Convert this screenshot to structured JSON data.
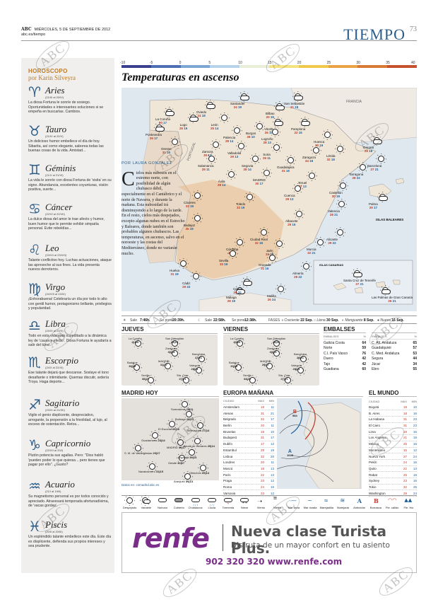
{
  "header": {
    "brand": "ABC",
    "date": "MIÉRCOLES, 5 DE SEPTIEMBRE DE 2012",
    "site": "abc.es/tiempo",
    "section": "TIEMPO",
    "page": "73"
  },
  "watermark": "ABC",
  "scale": {
    "labels": [
      "-10",
      "-5",
      "0",
      "5",
      "10",
      "15",
      "20",
      "25",
      "30",
      "35",
      "40"
    ],
    "colors": [
      "#3a3f8e",
      "#4f6fb5",
      "#7ea6d3",
      "#b7d3e8",
      "#e8eed7",
      "#f4e27e",
      "#f0c84a",
      "#e9a344",
      "#d87a34",
      "#c5522d"
    ]
  },
  "title": "Temperaturas en ascenso",
  "article": {
    "byline": "POR LAURA GONZÁLEZ",
    "dropcap": "C",
    "text": "ielos más nubosos en el extremo norte, con posibilidad de algún chubasco débil, especialmente en el Cantábrico y el norte de Navarra, y durante la mañana. Esta nubosidad irá disminuyendo a lo largo de la tarde. En el resto, cielos más despejados, excepto algunas nubes en el Estrecho y Baleares, donde también son probables algunos chubascos. Las temperaturas, en ascenso, salvo en el noroeste y las costas del Mediterráneo, donde no variarán mucho."
  },
  "map": {
    "france": "FRANCIA",
    "portugal": "PORTUGAL",
    "baleares": "ISLAS BALEARES",
    "canarias": "ISLAS CANARIAS",
    "cities": [
      {
        "n": "La Coruña",
        "t": [
          "20",
          "17"
        ]
      },
      {
        "n": "Oviedo",
        "t": [
          "24",
          "18"
        ]
      },
      {
        "n": "Santander",
        "t": [
          "24",
          "19"
        ]
      },
      {
        "n": "Bilbao",
        "t": [
          "20",
          "15"
        ]
      },
      {
        "n": "San Sebastián",
        "t": [
          "21",
          "15"
        ]
      },
      {
        "n": "Lugo",
        "t": [
          "26",
          "15"
        ]
      },
      {
        "n": "Pontevedra",
        "t": [
          "26",
          "17"
        ]
      },
      {
        "n": "León",
        "t": [
          "25",
          "14"
        ]
      },
      {
        "n": "Burgos",
        "t": [
          "28",
          "10"
        ]
      },
      {
        "n": "Vitoria",
        "t": [
          "26",
          "17"
        ]
      },
      {
        "n": "Pamplona",
        "t": [
          "22",
          "15"
        ]
      },
      {
        "n": "Orense",
        "t": [
          "31",
          "15"
        ]
      },
      {
        "n": "Palencia",
        "t": [
          "28",
          "14"
        ]
      },
      {
        "n": "Logroño",
        "t": [
          "28",
          "13"
        ]
      },
      {
        "n": "Huesca",
        "t": [
          "30",
          "19"
        ]
      },
      {
        "n": "Gerona",
        "t": [
          "28",
          "18"
        ]
      },
      {
        "n": "Zamora",
        "t": [
          "30",
          "13"
        ]
      },
      {
        "n": "Valladolid",
        "t": [
          "29",
          "13"
        ]
      },
      {
        "n": "Soria",
        "t": [
          "26",
          "11"
        ]
      },
      {
        "n": "Zaragoza",
        "t": [
          "34",
          "18"
        ]
      },
      {
        "n": "Lérida",
        "t": [
          "32",
          "18"
        ]
      },
      {
        "n": "Barcelona",
        "t": [
          "27",
          "21"
        ]
      },
      {
        "n": "Salamanca",
        "t": [
          "28",
          "11"
        ]
      },
      {
        "n": "Segovia",
        "t": [
          "28",
          "14"
        ]
      },
      {
        "n": "Guadalajara",
        "t": [
          "31",
          "16"
        ]
      },
      {
        "n": "Tarragona",
        "t": [
          "28",
          "22"
        ]
      },
      {
        "n": "Ávila",
        "t": [
          "28",
          "14"
        ]
      },
      {
        "n": "MADRID",
        "t": [
          "30",
          "17"
        ]
      },
      {
        "n": "Teruel",
        "t": [
          "27",
          "13"
        ]
      },
      {
        "n": "Cuenca",
        "t": [
          "29",
          "13"
        ]
      },
      {
        "n": "Castellón",
        "t": [
          "30",
          "19"
        ]
      },
      {
        "n": "Cáceres",
        "t": [
          "33",
          "19"
        ]
      },
      {
        "n": "Toledo",
        "t": [
          "33",
          "19"
        ]
      },
      {
        "n": "Valencia",
        "t": [
          "28",
          "21"
        ]
      },
      {
        "n": "Palma",
        "t": [
          "29",
          "17"
        ]
      },
      {
        "n": "Badajoz",
        "t": [
          "35",
          "19"
        ]
      },
      {
        "n": "Ciudad Real",
        "t": [
          "32",
          "18"
        ]
      },
      {
        "n": "Albacete",
        "t": [
          "29",
          "15"
        ]
      },
      {
        "n": "Alicante",
        "t": [
          "29",
          "22"
        ]
      },
      {
        "n": "Córdoba",
        "t": [
          "35",
          "20"
        ]
      },
      {
        "n": "Jaén",
        "t": [
          "31",
          "20"
        ]
      },
      {
        "n": "Murcia",
        "t": [
          "32",
          "21"
        ]
      },
      {
        "n": "Huelva",
        "t": [
          "31",
          "19"
        ]
      },
      {
        "n": "Sevilla",
        "t": [
          "33",
          "19"
        ]
      },
      {
        "n": "Granada",
        "t": [
          "31",
          "16"
        ]
      },
      {
        "n": "Almería",
        "t": [
          "29",
          "22"
        ]
      },
      {
        "n": "Cádiz",
        "t": [
          "29",
          "22"
        ]
      },
      {
        "n": "Málaga",
        "t": [
          "28",
          "19"
        ]
      },
      {
        "n": "Ceuta",
        "t": [
          "29",
          "20"
        ]
      },
      {
        "n": "Melilla",
        "t": [
          "26",
          "24"
        ]
      },
      {
        "n": "Santa Cruz de Tenerife",
        "t": [
          "27",
          "21"
        ]
      },
      {
        "n": "Las Palmas de Gran Canaria",
        "t": [
          "26",
          "21"
        ]
      }
    ]
  },
  "strip": {
    "sale_lbl": "Sale",
    "sale_sun": "7:46h.",
    "pone_lbl": "Se pone",
    "pone_sun": "20:39h.",
    "sale_moon": "22:58h.",
    "pone_moon": "12:38h.",
    "fases": "FASES",
    "f1": "Creciente",
    "f1d": "22 Sep.",
    "f2": "Llena",
    "f2d": "30 Sep.",
    "f3": "Menguante",
    "f3d": "8 Sep.",
    "f4": "Nueva",
    "f4d": "16 Sep."
  },
  "jueves": {
    "title": "JUEVES",
    "cities": [
      {
        "n": "La Coruña",
        "t": "21|16"
      },
      {
        "n": "San Sebastián",
        "t": "23|15"
      },
      {
        "n": "Zaragoza",
        "t": "33|18"
      },
      {
        "n": "Barcelona",
        "t": "27|21"
      },
      {
        "n": "Badajoz",
        "t": "36|19"
      },
      {
        "n": "MADRID",
        "t": "31|17"
      },
      {
        "n": "Valencia",
        "t": "28|21"
      },
      {
        "n": "Sevilla",
        "t": "36|21"
      },
      {
        "n": "Sta. Cruz",
        "t": "27|21"
      }
    ]
  },
  "viernes": {
    "title": "VIERNES",
    "cities": [
      {
        "n": "La Coruña",
        "t": "20|16"
      },
      {
        "n": "San Sebastián",
        "t": "24|16"
      },
      {
        "n": "Zaragoza",
        "t": "33|19"
      },
      {
        "n": "Barcelona",
        "t": "26|21"
      },
      {
        "n": "Badajoz",
        "t": "33|19"
      },
      {
        "n": "MADRID",
        "t": "29|17"
      },
      {
        "n": "Valencia",
        "t": "28|21"
      },
      {
        "n": "Sevilla",
        "t": "34|20"
      },
      {
        "n": "Sta. Cruz",
        "t": "27|21"
      }
    ]
  },
  "embalses": {
    "title": "EMBALSES",
    "hdr": [
      "EMBALSES",
      "%"
    ],
    "rows": [
      [
        "Galicia Costa",
        "64"
      ],
      [
        "Norte",
        "59"
      ],
      [
        "C.I. País Vasco",
        "76"
      ],
      [
        "Duero",
        "42"
      ],
      [
        "Tajo",
        "42"
      ],
      [
        "Guadiana",
        "60"
      ]
    ]
  },
  "embalses2": {
    "hdr": [
      "EMBALSES",
      "%"
    ],
    "rows": [
      [
        "C. Atl. Andaluza",
        "65"
      ],
      [
        "Guadalquivir",
        "57"
      ],
      [
        "C. Med. Andaluza",
        "53"
      ],
      [
        "Segura",
        "44"
      ],
      [
        "Júcar",
        "34"
      ],
      [
        "Ebro",
        "55"
      ]
    ]
  },
  "madrid": {
    "title": "MADRID HOY",
    "source": "Datos en: csmadrid.abc.es",
    "places": [
      {
        "n": "Somosierra",
        "t": "23|11"
      },
      {
        "n": "Buitrago",
        "t": "26|13"
      },
      {
        "n": "Torrelaguna",
        "t": "27|14"
      },
      {
        "n": "El Escorial",
        "t": "26|16"
      },
      {
        "n": "S. M. de Valdeiglesias",
        "t": "29|17"
      },
      {
        "n": "Guadarrama",
        "t": "23|14"
      },
      {
        "n": "MADRID",
        "t": "30|17"
      },
      {
        "n": "Alcalá de Henares",
        "t": "29|14"
      },
      {
        "n": "Navalcarnero",
        "t": "31|15"
      },
      {
        "n": "Getafe",
        "t": "30|17"
      },
      {
        "n": "Arganda",
        "t": "30|14"
      },
      {
        "n": "Chinchón",
        "t": "29|14"
      },
      {
        "n": "Aranjuez",
        "t": "31|14"
      }
    ]
  },
  "europa": {
    "title": "EUROPA MAÑANA",
    "hdr": [
      "CIUDAD",
      "MAX",
      "MIN"
    ],
    "rows": [
      [
        "Amsterdam",
        "19",
        "11"
      ],
      [
        "Atenas",
        "31",
        "21"
      ],
      [
        "Belgrado",
        "32",
        "17"
      ],
      [
        "Berlín",
        "20",
        "11"
      ],
      [
        "Bruselas",
        "19",
        "10"
      ],
      [
        "Budapest",
        "31",
        "17"
      ],
      [
        "Dublín",
        "17",
        "12"
      ],
      [
        "Estambul",
        "29",
        "19"
      ],
      [
        "Lisboa",
        "32",
        "20"
      ],
      [
        "Londres",
        "20",
        "11"
      ],
      [
        "Moscú",
        "18",
        "13"
      ],
      [
        "París",
        "22",
        "13"
      ],
      [
        "Praga",
        "23",
        "12"
      ],
      [
        "Roma",
        "24",
        "16"
      ],
      [
        "Varsovia",
        "23",
        "12"
      ]
    ],
    "h1": "A",
    "h1v": "1028",
    "l1": "B",
    "l1v": "984"
  },
  "mundo": {
    "title": "EL MUNDO",
    "hdr": [
      "CIUDAD",
      "MAX",
      "MIN"
    ],
    "rows": [
      [
        "Bogotá",
        "18",
        "10"
      ],
      [
        "B. Aires",
        "18",
        "16"
      ],
      [
        "La Habana",
        "31",
        "23"
      ],
      [
        "El Cairo",
        "31",
        "23"
      ],
      [
        "Lima",
        "19",
        "16"
      ],
      [
        "Los Ángeles",
        "21",
        "19"
      ],
      [
        "México",
        "25",
        "16"
      ],
      [
        "Montevideo",
        "15",
        "12"
      ],
      [
        "Nueva York",
        "27",
        "24"
      ],
      [
        "Pekín",
        "24",
        "16"
      ],
      [
        "Quito",
        "22",
        "13"
      ],
      [
        "Rabat",
        "26",
        "18"
      ],
      [
        "Sydney",
        "23",
        "16"
      ],
      [
        "Tokio",
        "32",
        "25"
      ],
      [
        "Washington",
        "29",
        "24"
      ]
    ]
  },
  "legend": [
    {
      "l": "Despejado",
      "i": "sun"
    },
    {
      "l": "Variable",
      "i": "sun-cloud"
    },
    {
      "l": "Nuboso",
      "i": "cloud"
    },
    {
      "l": "Cubierto",
      "i": "clouds"
    },
    {
      "l": "Chubascos",
      "i": "shower"
    },
    {
      "l": "Lluvia",
      "i": "rain"
    },
    {
      "l": "Tormenta",
      "i": "storm"
    },
    {
      "l": "Nieve",
      "i": "snow"
    },
    {
      "l": "Viento",
      "i": "wind"
    },
    {
      "l": "Niebla",
      "i": "fog"
    },
    {
      "l": "Mar llana",
      "i": "sea-calm"
    },
    {
      "l": "Mar rizada",
      "i": "sea-choppy"
    },
    {
      "l": "Marejadilla",
      "i": "sea-light"
    },
    {
      "l": "Marejada",
      "i": "sea-moderate"
    },
    {
      "l": "Anticiclón",
      "i": "high"
    },
    {
      "l": "Borrasca",
      "i": "low"
    },
    {
      "l": "Fte. cálido",
      "i": "warm-front"
    },
    {
      "l": "Fte. frío",
      "i": "cold-front"
    }
  ],
  "ad": {
    "brand": "renfe",
    "headline": "Nueva clase Turista Plus.",
    "sub": "Disfruta de un mayor confort en tu asiento",
    "contact": "902 320 320 www.renfe.com"
  },
  "horoscopo": {
    "title": "HOROSCOPO",
    "by": "por Karin Silveyra",
    "signs": [
      {
        "s": "♈",
        "n": "Aries",
        "d": "(21/III al 20/IV)",
        "t": "La diosa Fortuna le sonríe de sosiego. Oportunidades e interesantes soluciones si se empeña en buscarlas. Cambios."
      },
      {
        "s": "♉",
        "n": "Tauro",
        "d": "(21/IV al 20/V)",
        "t": "Un delicioso humor embellece el día de hoy. Sibarita, así como elegante, saborea todas las buenas cosas de la vida. Amistad..."
      },
      {
        "s": "♊",
        "n": "Géminis",
        "d": "(21/V al 21/VI)",
        "t": "La vida le sonríe con diosa Fortuna de 'visita' en su signo. Abundancia, excelentes coyunturas, visión positiva, suerte..."
      },
      {
        "s": "♋",
        "n": "Cáncer",
        "d": "(22/VI al 22/VII)",
        "t": "La dulce diosa del amor le trae afecto y humor, buen humor que le permite exhibir simpatía personal. Evite rebeldías..."
      },
      {
        "s": "♌",
        "n": "Leo",
        "d": "(23/VII al 23/VIII)",
        "t": "Talante conflictivo hoy. Luchas actuaciones, ataque las aproveche al sus fines. La vida presenta nuevos derroteros."
      },
      {
        "s": "♍",
        "n": "Virgo",
        "d": "(24/VIII al 23/IX)",
        "t": "¡Enhorabuena! Celebraría un día por todo lo alto con gentil humor, protagonismo brillante, privilegios y popularidad."
      },
      {
        "s": "♎",
        "n": "Libra",
        "d": "(24/IX al 23/X)",
        "t": "Todo en esta vida está supeditado a la dinámica ley de 'causa y efecto'. Diosa Fortuna le ayudaría a salir del túnel."
      },
      {
        "s": "♏",
        "n": "Escorpio",
        "d": "(24/X al 22/XI)",
        "t": "Ese talante dejará que descanse. Soslaye el tono desafiante o intimidante. Quemas discutir, ardería Troya. Haga deporte..."
      },
      {
        "s": "♐",
        "n": "Sagitario",
        "d": "(23/XI al 21/XII)",
        "t": "Vigile el genio displicente, despreciativo, arrogante, la propensión a la frivolidad, al lujo, al exceso de ostentación. Retos..."
      },
      {
        "s": "♑",
        "n": "Capricornio",
        "d": "(22/XII al 20/I)",
        "t": "Plutón potencia sus agallas. Pero: \"Dios habló 'pueden poder lo que quieras... pero tienes que pagar por ello\". ¿Gusto?"
      },
      {
        "s": "♒",
        "n": "Acuario",
        "d": "(21/I al 19/II)",
        "t": "Su magnetismo personal es por todos conocido y apreciado. Atravesará temporada afortunadísima, de 'vacas gordas'."
      },
      {
        "s": "♓",
        "n": "Piscis",
        "d": "(20/II al 20/III)",
        "t": "Un espléndido talante embellece este día. Este día es displicente, defienda sus propios intereses y sea prudente."
      }
    ]
  }
}
